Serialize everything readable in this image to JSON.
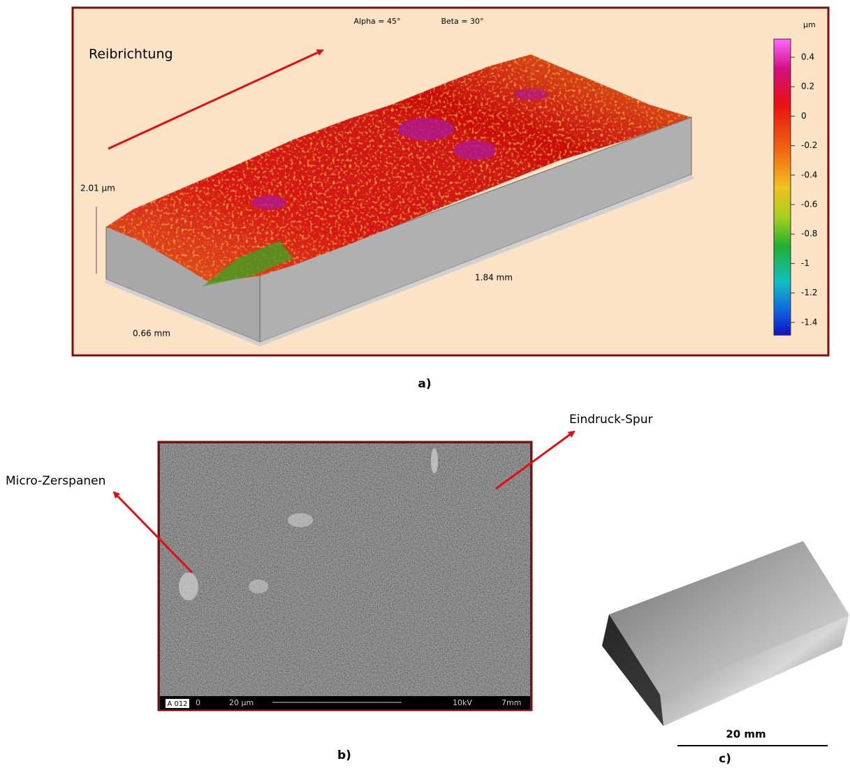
{
  "panel_a": {
    "view": {
      "alpha": "Alpha = 45°",
      "beta": "Beta = 30°"
    },
    "direction_label": "Reibrichtung",
    "z_size": "2.01 µm",
    "length": "1.84 mm",
    "width": "0.66 mm",
    "colorbar": {
      "unit": "µm",
      "labels": [
        "0.4",
        "0.2",
        "0",
        "-0.2",
        "-0.4",
        "-0.6",
        "-0.8",
        "-1",
        "-1.2",
        "-1.4"
      ]
    },
    "caption": "a)"
  },
  "panel_b": {
    "annotation_right": "Eindruck-Spur",
    "annotation_left": "Micro-Zerspanen",
    "sem_bar": {
      "id": "A 012",
      "zero": "0",
      "scale": "20 µm",
      "voltage": "10kV",
      "distance": "7mm"
    },
    "caption": "b)"
  },
  "panel_c": {
    "scale": "20 mm",
    "caption": "c)"
  }
}
